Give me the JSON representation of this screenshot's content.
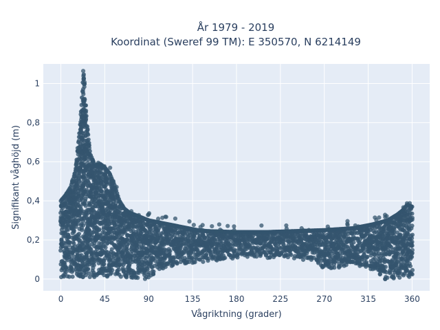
{
  "chart_data": {
    "type": "scatter",
    "title_line1": "År 1979 - 2019",
    "title_line2": "Koordinat (Sweref 99 TM): E 350570, N 6214149",
    "xlabel": "Vågriktning (grader)",
    "ylabel": "Signifikant våghöjd (m)",
    "xlim": [
      -18,
      378
    ],
    "ylim": [
      -0.06,
      1.1
    ],
    "x_ticks": [
      0,
      45,
      90,
      135,
      180,
      225,
      270,
      315,
      360
    ],
    "x_tick_labels": [
      "0",
      "45",
      "90",
      "135",
      "180",
      "225",
      "270",
      "315",
      "360"
    ],
    "y_ticks": [
      0,
      0.2,
      0.4,
      0.6,
      0.8,
      1.0
    ],
    "y_tick_labels": [
      "0",
      "0,2",
      "0,4",
      "0,6",
      "0,8",
      "1"
    ],
    "grid": true,
    "legend": "none",
    "colors": {
      "marker": "#34556e",
      "plot_bg": "#e5ecf6",
      "grid": "#ffffff"
    },
    "series": [
      {
        "envelope": [
          [
            0,
            0.4
          ],
          [
            5,
            0.43
          ],
          [
            10,
            0.47
          ],
          [
            15,
            0.55
          ],
          [
            18,
            0.7
          ],
          [
            20,
            0.8
          ],
          [
            22,
            0.96
          ],
          [
            23,
            1.05
          ],
          [
            24,
            1.04
          ],
          [
            25,
            0.9
          ],
          [
            27,
            0.78
          ],
          [
            30,
            0.64
          ],
          [
            35,
            0.58
          ],
          [
            40,
            0.59
          ],
          [
            45,
            0.57
          ],
          [
            50,
            0.54
          ],
          [
            55,
            0.48
          ],
          [
            60,
            0.4
          ],
          [
            65,
            0.36
          ],
          [
            70,
            0.34
          ],
          [
            75,
            0.33
          ],
          [
            80,
            0.32
          ],
          [
            90,
            0.3
          ],
          [
            100,
            0.29
          ],
          [
            110,
            0.28
          ],
          [
            120,
            0.27
          ],
          [
            130,
            0.26
          ],
          [
            140,
            0.25
          ],
          [
            150,
            0.245
          ],
          [
            180,
            0.24
          ],
          [
            210,
            0.24
          ],
          [
            240,
            0.245
          ],
          [
            270,
            0.25
          ],
          [
            300,
            0.26
          ],
          [
            320,
            0.28
          ],
          [
            335,
            0.3
          ],
          [
            345,
            0.33
          ],
          [
            350,
            0.35
          ],
          [
            355,
            0.38
          ],
          [
            360,
            0.37
          ]
        ],
        "floor": [
          [
            0,
            0.01
          ],
          [
            60,
            0.01
          ],
          [
            70,
            0.0
          ],
          [
            90,
            0.0
          ],
          [
            100,
            0.05
          ],
          [
            120,
            0.07
          ],
          [
            135,
            0.08
          ],
          [
            150,
            0.09
          ],
          [
            180,
            0.1
          ],
          [
            225,
            0.11
          ],
          [
            260,
            0.09
          ],
          [
            270,
            0.05
          ],
          [
            290,
            0.06
          ],
          [
            300,
            0.07
          ],
          [
            315,
            0.06
          ],
          [
            330,
            0.0
          ],
          [
            360,
            0.0
          ]
        ]
      }
    ]
  }
}
